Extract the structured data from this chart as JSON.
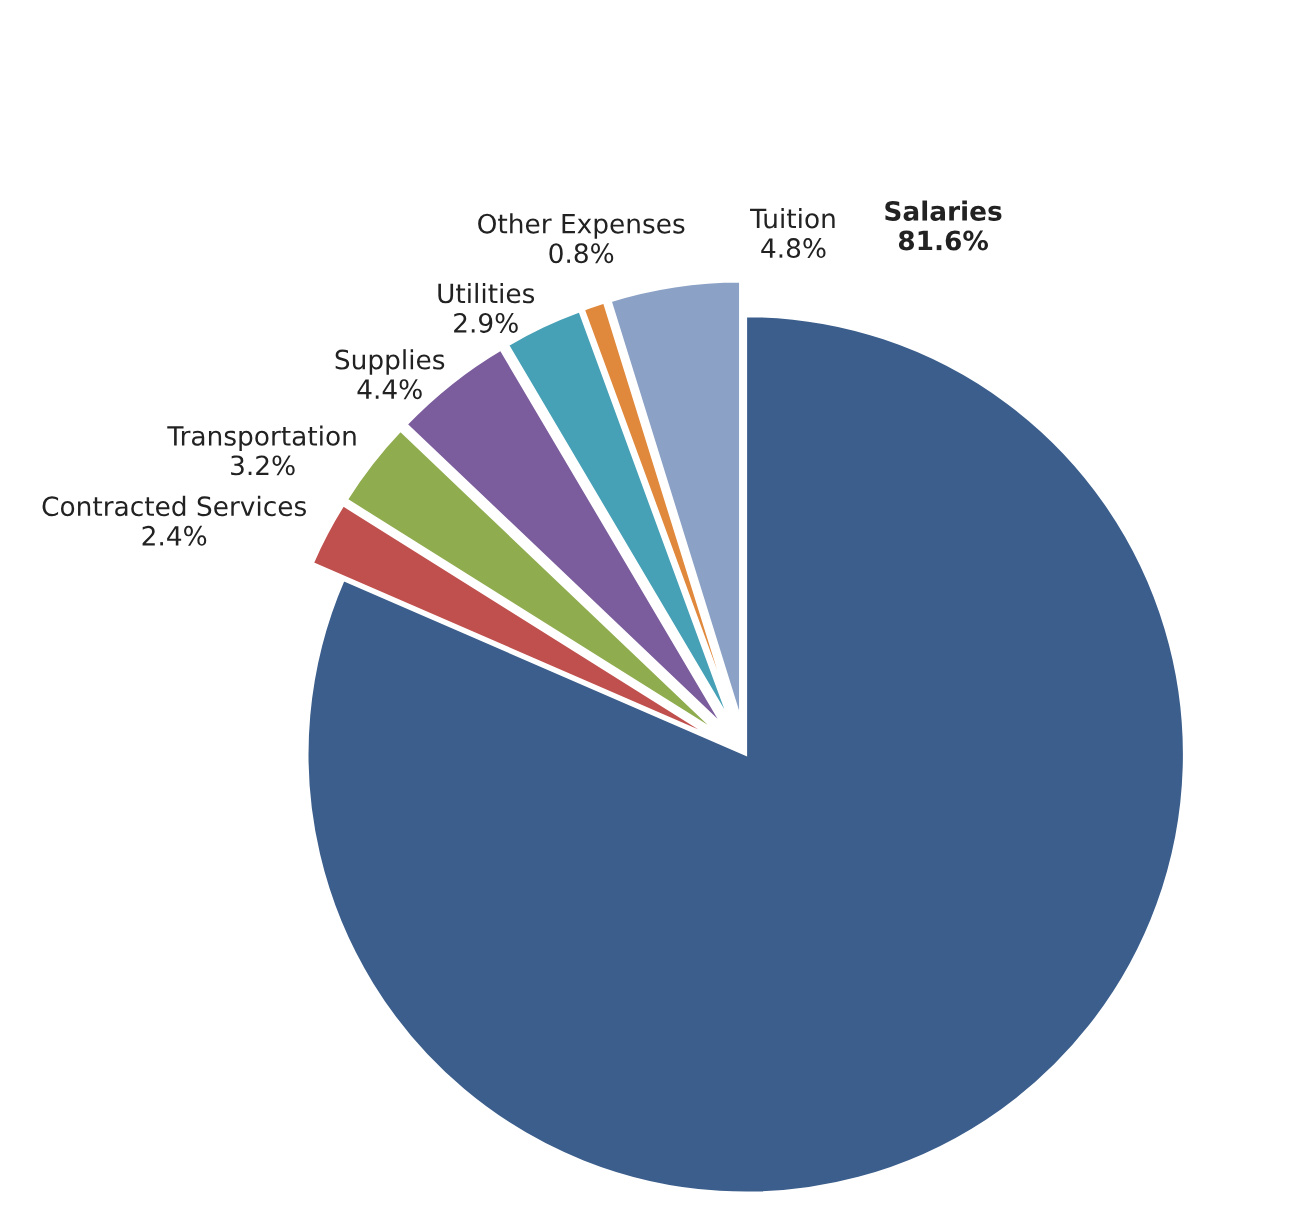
{
  "chart_data": {
    "type": "pie",
    "categories": [
      "Salaries",
      "Contracted Services",
      "Transportation",
      "Supplies",
      "Utilities",
      "Other Expenses",
      "Tuition"
    ],
    "values": [
      81.6,
      2.4,
      3.2,
      4.4,
      2.9,
      0.8,
      4.8
    ],
    "colors": [
      "#3b5e8c",
      "#c0504d",
      "#8fac4f",
      "#7b5c9c",
      "#46a1b7",
      "#e0893c",
      "#8ba2c6"
    ],
    "value_labels": [
      "81.6%",
      "2.4%",
      "3.2%",
      "4.4%",
      "2.9%",
      "0.8%",
      "4.8%"
    ]
  }
}
